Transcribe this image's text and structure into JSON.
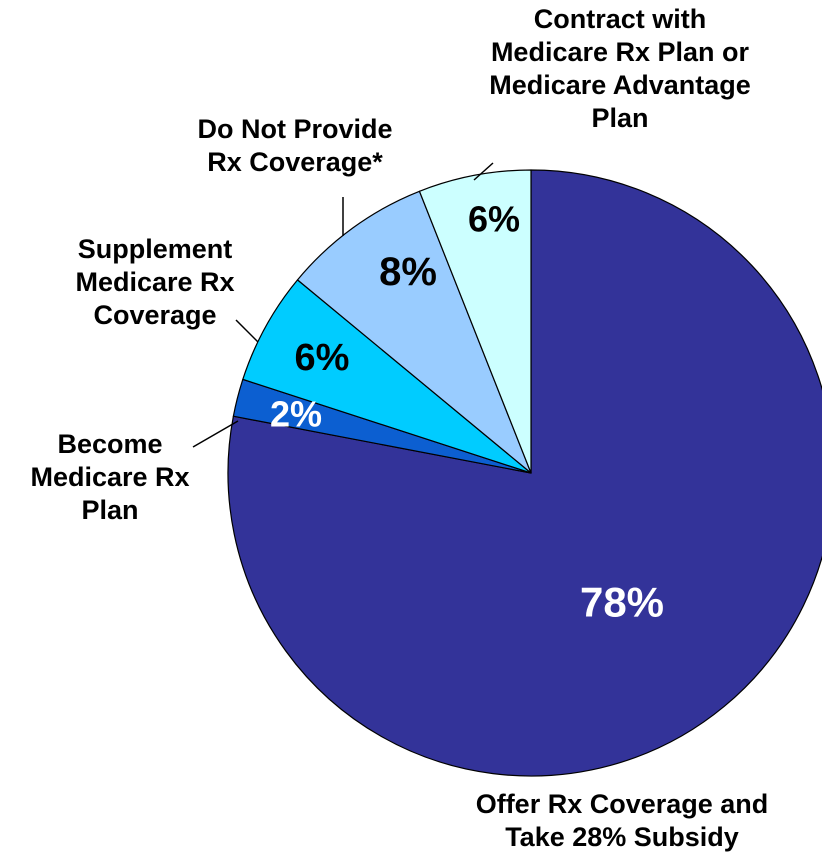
{
  "chart_data": {
    "type": "pie",
    "slices": [
      {
        "label": "Offer Rx Coverage and\nTake 28% Subsidy",
        "value": 78,
        "value_label": "78%",
        "color": "#333399",
        "text_color": "#ffffff"
      },
      {
        "label": "Become\nMedicare Rx\nPlan",
        "value": 2,
        "value_label": "2%",
        "color": "#0c5fd1",
        "text_color": "#ffffff"
      },
      {
        "label": "Supplement\nMedicare Rx\nCoverage",
        "value": 6,
        "value_label": "6%",
        "color": "#00ccff",
        "text_color": "#000000"
      },
      {
        "label": "Do Not Provide\nRx Coverage*",
        "value": 8,
        "value_label": "8%",
        "color": "#99ccff",
        "text_color": "#000000"
      },
      {
        "label": "Contract with\nMedicare Rx Plan or\nMedicare Advantage\nPlan",
        "value": 6,
        "value_label": "6%",
        "color": "#ccffff",
        "text_color": "#000000"
      }
    ],
    "start": "12 o'clock",
    "direction": "clockwise",
    "legend": "none"
  }
}
